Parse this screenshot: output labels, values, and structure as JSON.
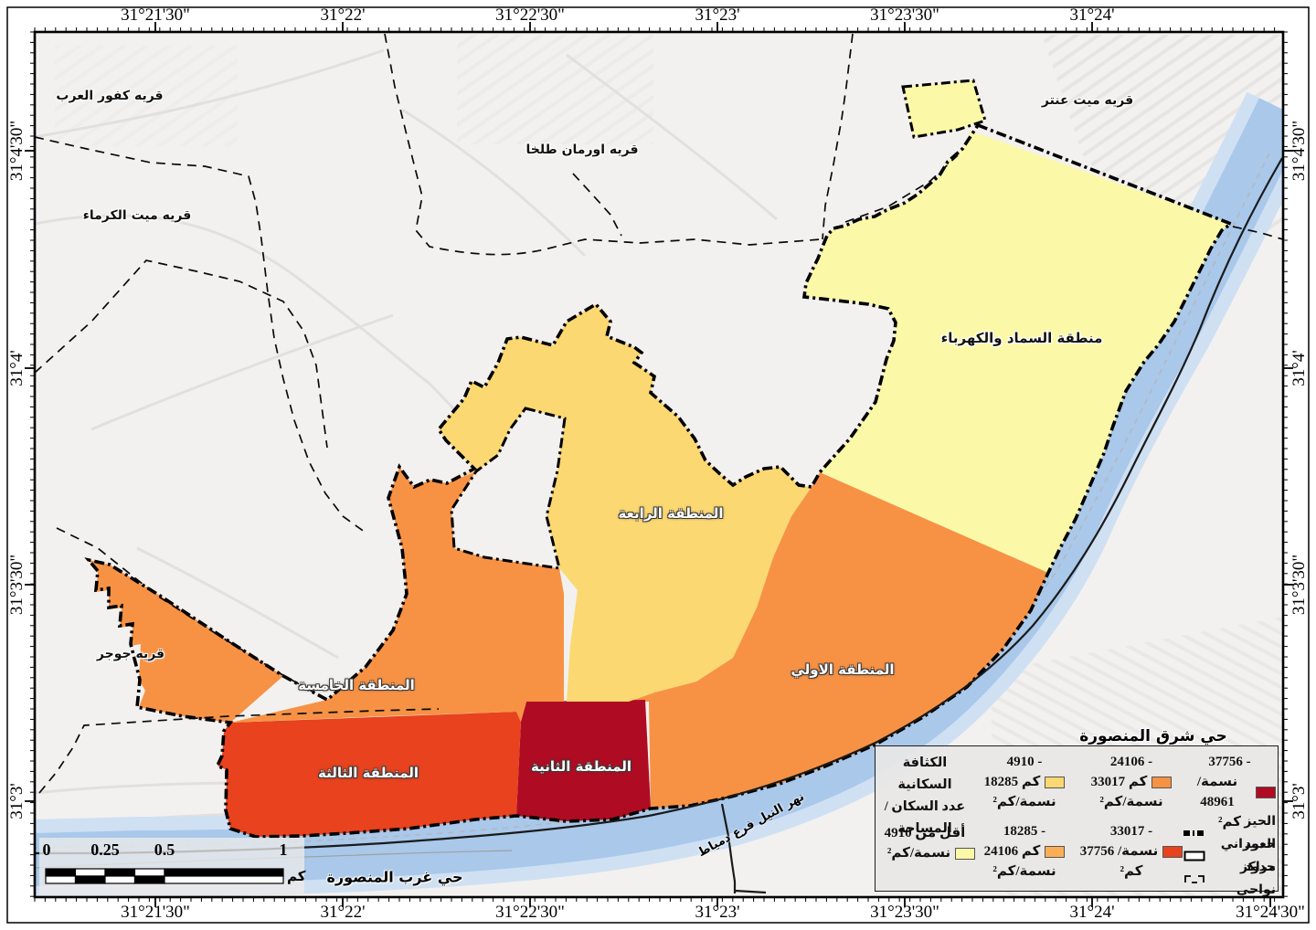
{
  "colors": {
    "land": "#F2F1EF",
    "street": "#E4E2DF",
    "river": "#A9C8EA",
    "river_fringe": "#CFE0F3",
    "road": "#1A1A1A",
    "boundary": "#000000",
    "panel": "#E8E7E5",
    "class1": "#FBF9A8",
    "class2": "#FBD871",
    "class3": "#FBAE55",
    "class4": "#F79245",
    "class5": "#E8421E",
    "class6": "#AF0C24"
  },
  "axis": {
    "top": [
      "31°21'30\"",
      "31°22'",
      "31°22'30\"",
      "31°23'",
      "31°23'30\"",
      "31°24'"
    ],
    "bottom": [
      "31°21'30\"",
      "31°22'",
      "31°22'30\"",
      "31°23'",
      "31°23'30\"",
      "31°24'",
      "31°24'30\""
    ],
    "left": [
      "31°4'30\"",
      "31°4'",
      "31°3'30\"",
      "31°3'"
    ],
    "right": [
      "31°4'30\"",
      "31°4'",
      "31°3'30\"",
      "31°3'"
    ]
  },
  "zones": {
    "samad": "منطقة السماد والكهرباء",
    "first": "المنطقة الاولي",
    "second": "المنطقة الثانية",
    "third": "المنطقة الثالثة",
    "fourth": "المنطقة الرابعة",
    "fifth": "المنطقة الخامسة"
  },
  "villages": {
    "kafur_elarab": "قريه كفور العرب",
    "mit_elkorama": "قريه ميت الكرماء",
    "orman_talkha": "قريه اورمان طلخا",
    "mit_antar": "قريه ميت عنتر",
    "gogar": "قريه جوجر"
  },
  "districts": {
    "east": "حي شرق المنصورة",
    "west": "حي غرب المنصورة"
  },
  "river_label": "نهر النيل فرع دمياط",
  "legend": {
    "title": [
      "الكثافة السكانية",
      "عدد السكان /",
      "المساحة"
    ],
    "classes": [
      {
        "lines": [
          "أقل من 4910",
          "نسمة/كم²",
          ""
        ]
      },
      {
        "lines": [
          "- 4910",
          "كم 18285",
          "نسمة/كم²"
        ]
      },
      {
        "lines": [
          "- 18285",
          "كم 24106",
          "نسمة/كم²"
        ]
      },
      {
        "lines": [
          "- 24106",
          "كم 33017",
          "نسمة/كم²"
        ]
      },
      {
        "lines": [
          "- 33017",
          "نسمة/ 37756",
          "كم²"
        ]
      },
      {
        "lines": [
          "- 37756",
          "نسمة/ 48961",
          "كم²"
        ]
      }
    ],
    "extras": [
      "الحيز العمراني",
      "حدود مراكز",
      "حدود نواحي"
    ]
  },
  "scalebar": {
    "labels": [
      "0",
      "0.25",
      "0.5",
      "1"
    ],
    "unit": "كم"
  }
}
